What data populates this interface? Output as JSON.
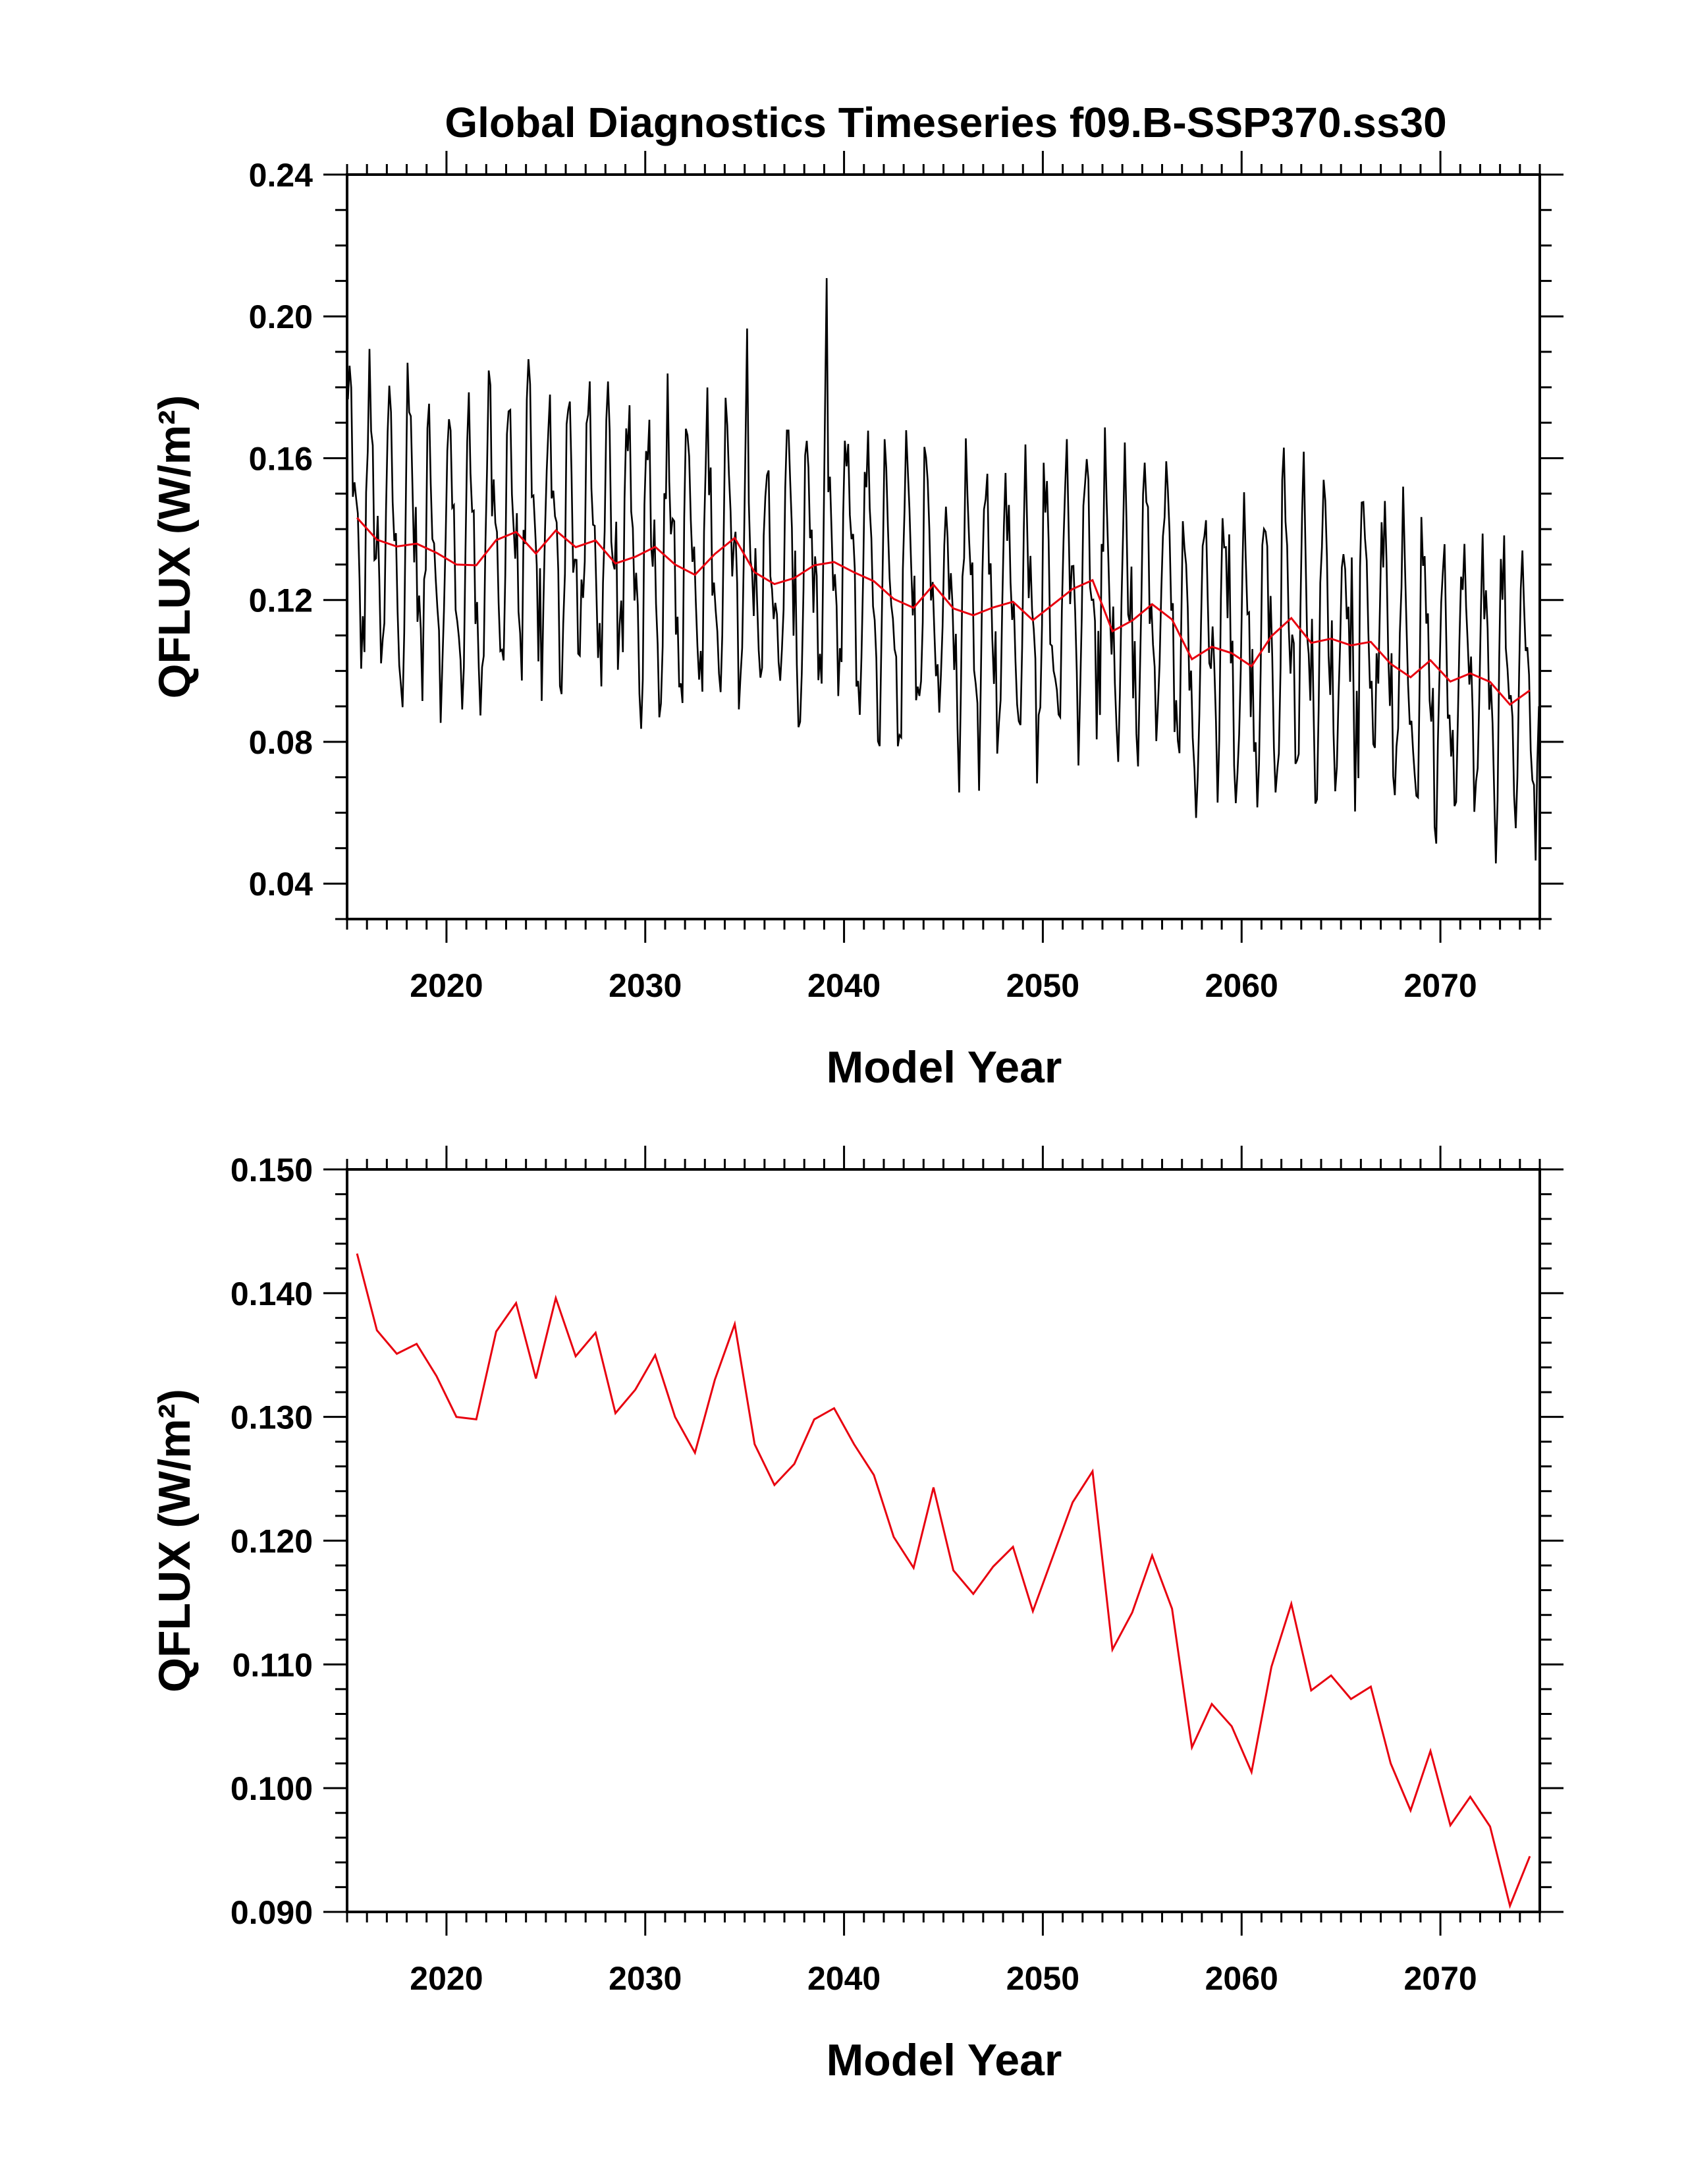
{
  "chart_data": [
    {
      "type": "line",
      "title": "Global Diagnostics Timeseries f09.B-SSP370.ss30",
      "xlabel": "Model Year",
      "ylabel": "QFLUX (W/m²)",
      "xlim": [
        2015,
        2075
      ],
      "ylim": [
        0.03,
        0.24
      ],
      "x_ticks": [
        "2020",
        "2030",
        "2040",
        "2050",
        "2060",
        "2070"
      ],
      "y_ticks": [
        "0.04",
        "0.08",
        "0.12",
        "0.16",
        "0.20",
        "0.24"
      ],
      "series": [
        {
          "kind": "monthly",
          "color": "#000000",
          "start_year": 2015,
          "values_per_year": 12,
          "seasonal_amplitude": 0.032,
          "seasonal_phase": 0.6
        },
        {
          "kind": "annual",
          "color": "#e8000f",
          "source": "annual_means"
        }
      ]
    },
    {
      "type": "line",
      "title": "",
      "xlabel": "Model Year",
      "ylabel": "QFLUX (W/m²)",
      "xlim": [
        2015,
        2075
      ],
      "ylim": [
        0.09,
        0.15
      ],
      "x_ticks": [
        "2020",
        "2030",
        "2040",
        "2050",
        "2060",
        "2070"
      ],
      "y_ticks": [
        "0.090",
        "0.100",
        "0.110",
        "0.120",
        "0.130",
        "0.140",
        "0.150"
      ],
      "series": [
        {
          "kind": "annual",
          "color": "#e8000f",
          "source": "annual_means"
        }
      ]
    }
  ],
  "annual_means": {
    "x": [
      2015.5,
      2016.5,
      2017.5,
      2018.5,
      2019.5,
      2020.5,
      2021.5,
      2022.5,
      2023.5,
      2024.5,
      2025.5,
      2026.5,
      2027.5,
      2028.5,
      2029.5,
      2030.5,
      2031.5,
      2032.5,
      2033.5,
      2034.5,
      2035.5,
      2036.5,
      2037.5,
      2038.5,
      2039.5,
      2040.5,
      2041.5,
      2042.5,
      2043.5,
      2044.5,
      2045.5,
      2046.5,
      2047.5,
      2048.5,
      2049.5,
      2050.5,
      2051.5,
      2052.5,
      2053.5,
      2054.5,
      2055.5,
      2056.5,
      2057.5,
      2058.5,
      2059.5,
      2060.5,
      2061.5,
      2062.5,
      2063.5,
      2064.5,
      2065.5,
      2066.5,
      2067.5,
      2068.5,
      2069.5,
      2070.5,
      2071.5,
      2072.5,
      2073.5,
      2074.5
    ],
    "y": [
      0.1432,
      0.137,
      0.1351,
      0.1359,
      0.1333,
      0.13,
      0.1298,
      0.1369,
      0.1392,
      0.1331,
      0.1396,
      0.1349,
      0.1368,
      0.1303,
      0.1322,
      0.135,
      0.13,
      0.1271,
      0.133,
      0.1375,
      0.1278,
      0.1245,
      0.1262,
      0.1298,
      0.1307,
      0.1278,
      0.1253,
      0.1203,
      0.1178,
      0.1243,
      0.1176,
      0.1157,
      0.1179,
      0.1195,
      0.1143,
      0.1187,
      0.1231,
      0.1256,
      0.1112,
      0.1142,
      0.1188,
      0.1145,
      0.1033,
      0.1068,
      0.105,
      0.1013,
      0.1098,
      0.1149,
      0.1079,
      0.1091,
      0.1072,
      0.1082,
      0.102,
      0.0982,
      0.103,
      0.097,
      0.0993,
      0.0969,
      0.0905,
      0.0945
    ]
  }
}
